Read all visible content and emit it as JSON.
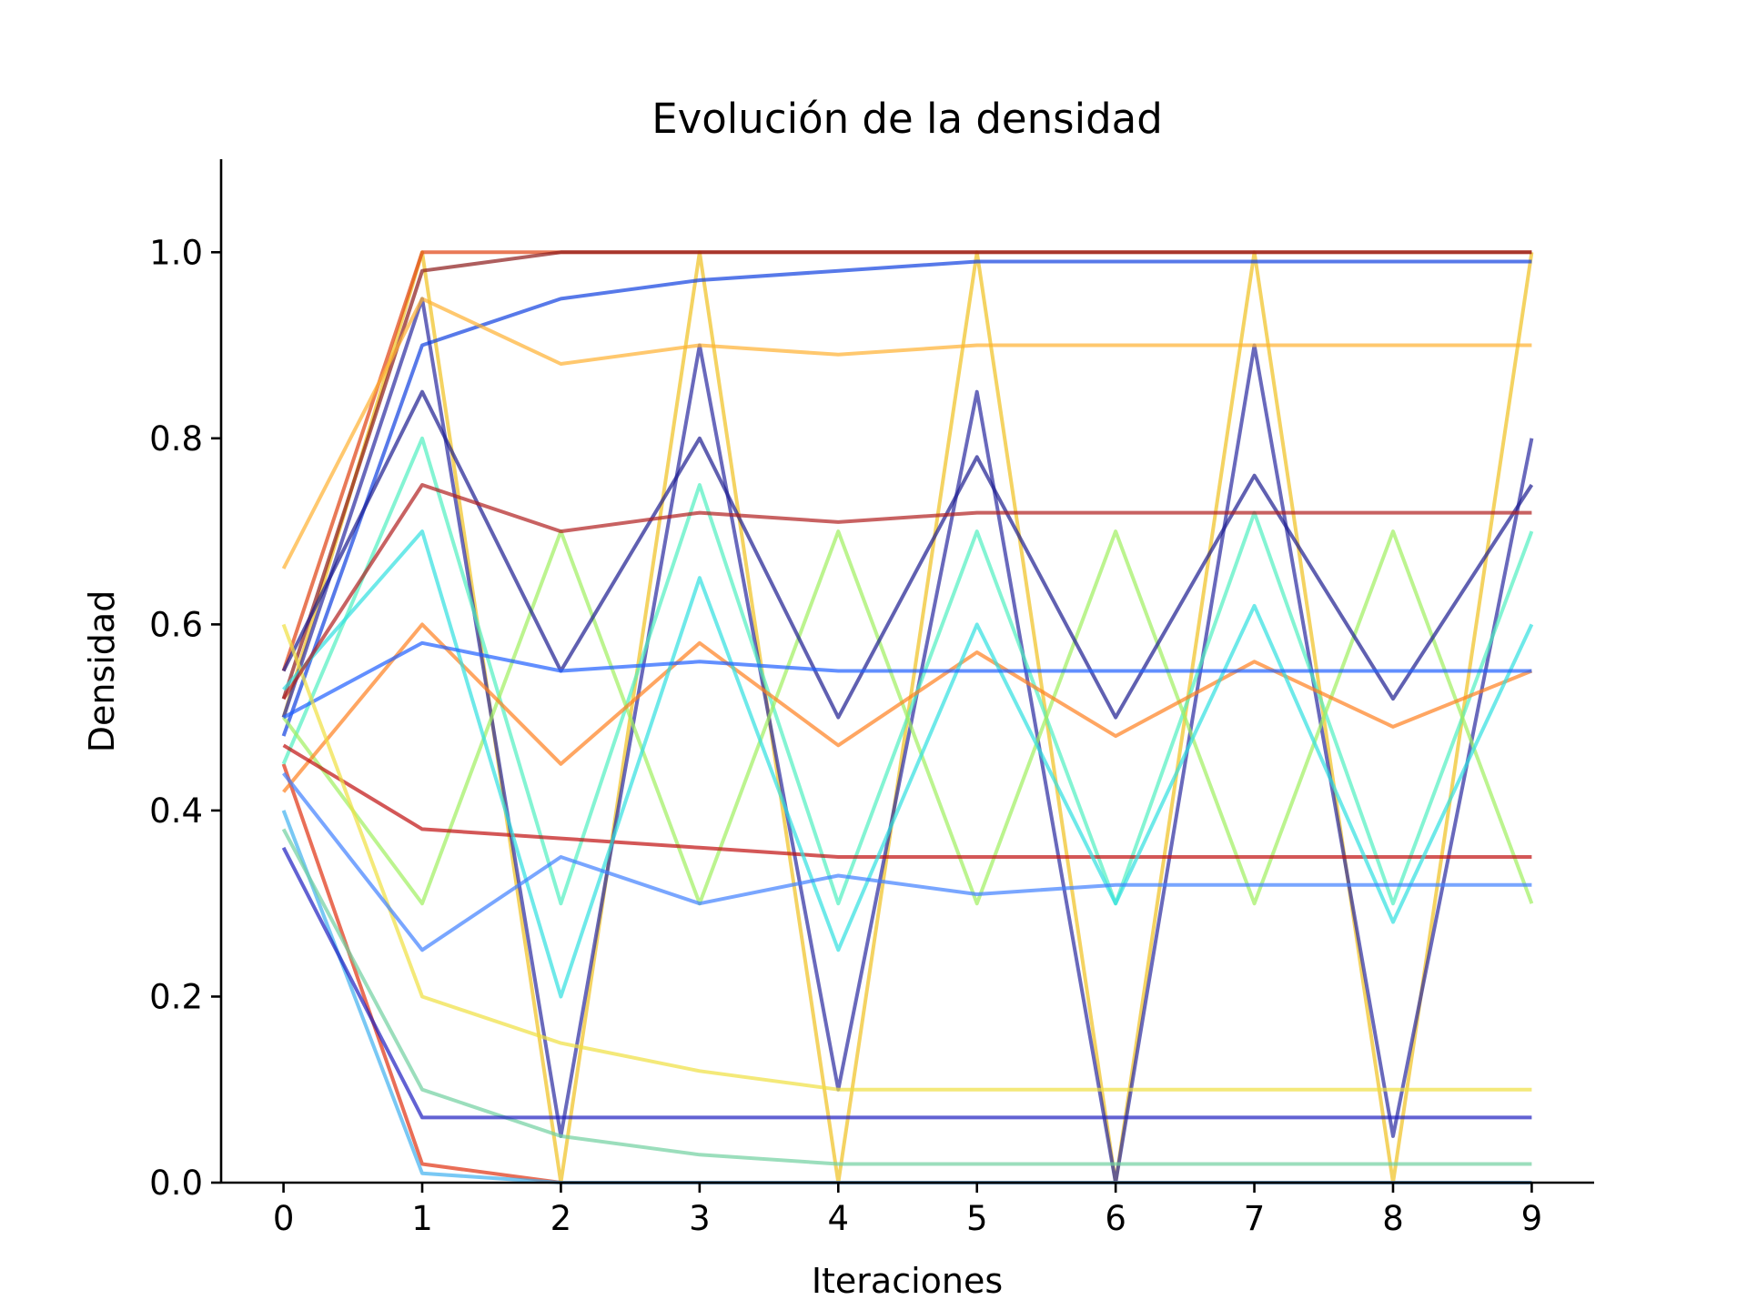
{
  "chart_data": {
    "type": "line",
    "title": "Evolución de la densidad",
    "xlabel": "Iteraciones",
    "ylabel": "Densidad",
    "xlim": [
      -0.45,
      9.45
    ],
    "ylim": [
      0.0,
      1.1
    ],
    "xticks": [
      0,
      1,
      2,
      3,
      4,
      5,
      6,
      7,
      8,
      9
    ],
    "xtick_labels": [
      "0",
      "1",
      "2",
      "3",
      "4",
      "5",
      "6",
      "7",
      "8",
      "9"
    ],
    "yticks": [
      0.0,
      0.2,
      0.4,
      0.6,
      0.8,
      1.0
    ],
    "ytick_labels": [
      "0.0",
      "0.2",
      "0.4",
      "0.6",
      "0.8",
      "1.0"
    ],
    "grid": false,
    "legend": "none",
    "colormap": "jet",
    "line_alpha": 0.7,
    "x": [
      0,
      1,
      2,
      3,
      4,
      5,
      6,
      7,
      8,
      9
    ],
    "series": [
      {
        "color": "#f0c020",
        "values": [
          0.5,
          1.0,
          0.0,
          1.0,
          0.0,
          1.0,
          0.0,
          1.0,
          0.0,
          1.0
        ]
      },
      {
        "color": "#2a2aa0",
        "values": [
          0.5,
          0.95,
          0.05,
          0.9,
          0.1,
          0.85,
          0.0,
          0.9,
          0.05,
          0.8
        ]
      },
      {
        "color": "#e03010",
        "values": [
          0.45,
          0.02,
          0.0,
          0.0,
          0.0,
          0.0,
          0.0,
          0.0,
          0.0,
          0.0
        ]
      },
      {
        "color": "#40b0f0",
        "values": [
          0.4,
          0.01,
          0.0,
          0.0,
          0.0,
          0.0,
          0.0,
          0.0,
          0.0,
          0.0
        ]
      },
      {
        "color": "#e04010",
        "values": [
          0.55,
          1.0,
          1.0,
          1.0,
          1.0,
          1.0,
          1.0,
          1.0,
          1.0,
          1.0
        ]
      },
      {
        "color": "#8b1a1a",
        "values": [
          0.52,
          0.98,
          1.0,
          1.0,
          1.0,
          1.0,
          1.0,
          1.0,
          1.0,
          1.0
        ]
      },
      {
        "color": "#1040e0",
        "values": [
          0.48,
          0.9,
          0.95,
          0.97,
          0.98,
          0.99,
          0.99,
          0.99,
          0.99,
          0.99
        ]
      },
      {
        "color": "#50f0c0",
        "values": [
          0.45,
          0.8,
          0.3,
          0.75,
          0.3,
          0.7,
          0.3,
          0.72,
          0.3,
          0.7
        ]
      },
      {
        "color": "#a0f060",
        "values": [
          0.5,
          0.3,
          0.7,
          0.3,
          0.7,
          0.3,
          0.7,
          0.3,
          0.7,
          0.3
        ]
      },
      {
        "color": "#1c1c90",
        "values": [
          0.55,
          0.85,
          0.55,
          0.8,
          0.5,
          0.78,
          0.5,
          0.76,
          0.52,
          0.75
        ]
      },
      {
        "color": "#ff8020",
        "values": [
          0.42,
          0.6,
          0.45,
          0.58,
          0.47,
          0.57,
          0.48,
          0.56,
          0.49,
          0.55
        ]
      },
      {
        "color": "#c01010",
        "values": [
          0.47,
          0.38,
          0.37,
          0.36,
          0.35,
          0.35,
          0.35,
          0.35,
          0.35,
          0.35
        ]
      },
      {
        "color": "#30e0e0",
        "values": [
          0.53,
          0.7,
          0.2,
          0.65,
          0.25,
          0.6,
          0.3,
          0.62,
          0.28,
          0.6
        ]
      },
      {
        "color": "#2060ff",
        "values": [
          0.5,
          0.58,
          0.55,
          0.56,
          0.55,
          0.55,
          0.55,
          0.55,
          0.55,
          0.55
        ]
      },
      {
        "color": "#f0e040",
        "values": [
          0.6,
          0.2,
          0.15,
          0.12,
          0.1,
          0.1,
          0.1,
          0.1,
          0.1,
          0.1
        ]
      },
      {
        "color": "#70d0a0",
        "values": [
          0.38,
          0.1,
          0.05,
          0.03,
          0.02,
          0.02,
          0.02,
          0.02,
          0.02,
          0.02
        ]
      },
      {
        "color": "#b02020",
        "values": [
          0.52,
          0.75,
          0.7,
          0.72,
          0.71,
          0.72,
          0.72,
          0.72,
          0.72,
          0.72
        ]
      },
      {
        "color": "#4080ff",
        "values": [
          0.44,
          0.25,
          0.35,
          0.3,
          0.33,
          0.31,
          0.32,
          0.32,
          0.32,
          0.32
        ]
      },
      {
        "color": "#ffb030",
        "values": [
          0.66,
          0.95,
          0.88,
          0.9,
          0.89,
          0.9,
          0.9,
          0.9,
          0.9,
          0.9
        ]
      },
      {
        "color": "#2020c0",
        "values": [
          0.36,
          0.07,
          0.07,
          0.07,
          0.07,
          0.07,
          0.07,
          0.07,
          0.07,
          0.07
        ]
      }
    ]
  }
}
